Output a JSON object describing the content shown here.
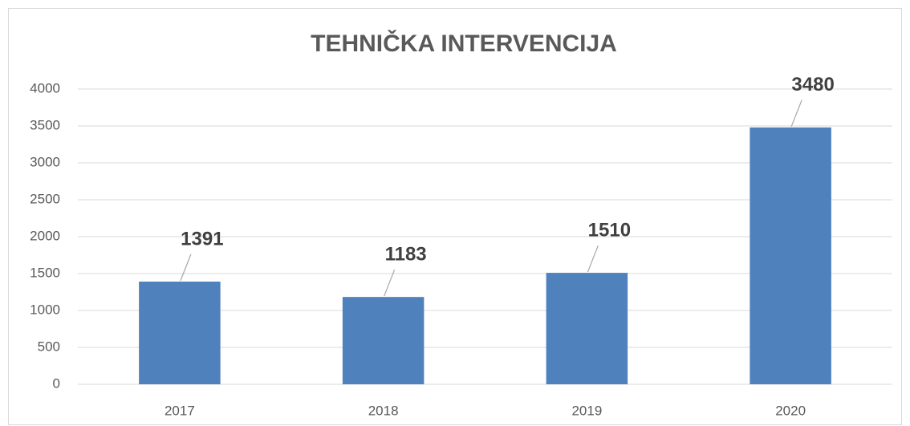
{
  "chart_data": {
    "type": "bar",
    "title": "TEHNIČKA INTERVENCIJA",
    "categories": [
      "2017",
      "2018",
      "2019",
      "2020"
    ],
    "values": [
      1391,
      1183,
      1510,
      3480
    ],
    "color": "#4f81bd",
    "ylim": [
      0,
      4000
    ],
    "yticks": [
      0,
      500,
      1000,
      1500,
      2000,
      2500,
      3000,
      3500,
      4000
    ],
    "grid": true
  }
}
